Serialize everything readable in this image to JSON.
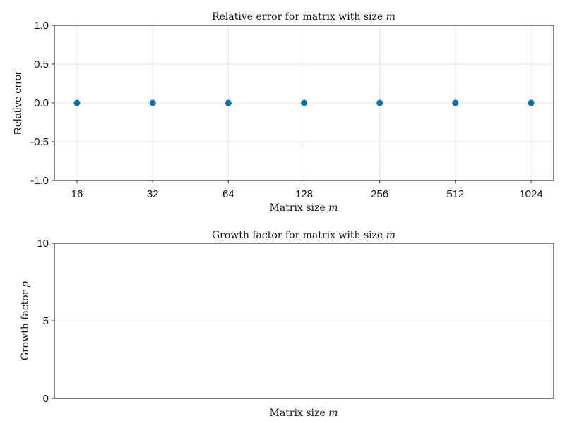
{
  "chart_data": [
    {
      "type": "scatter",
      "title": "Relative error for matrix with size m",
      "xlabel": "Matrix size m",
      "ylabel": "Relative error",
      "x_scale": "log2",
      "x": [
        16,
        32,
        64,
        128,
        256,
        512,
        1024
      ],
      "series": [
        {
          "values": [
            0,
            0,
            0,
            0,
            0,
            0,
            0
          ]
        }
      ],
      "x_ticks": [
        "16",
        "32",
        "64",
        "128",
        "256",
        "512",
        "1024"
      ],
      "y_ticks": [
        "-1.0",
        "-0.5",
        "0.0",
        "0.5",
        "1.0"
      ],
      "ylim": [
        -1,
        1
      ],
      "grid": true,
      "colors": {
        "marker": "#0a6fad",
        "grid": "#e6e6e6",
        "axis": "#333333"
      }
    },
    {
      "type": "scatter",
      "title": "Growth factor for matrix with size m",
      "xlabel": "Matrix size m",
      "ylabel": "Growth factor ρ",
      "x": [],
      "series": [],
      "y_ticks": [
        "0",
        "5",
        "10"
      ],
      "ylim": [
        0,
        10
      ],
      "grid": true,
      "colors": {
        "grid": "#e6e6e6",
        "axis": "#333333"
      }
    }
  ]
}
